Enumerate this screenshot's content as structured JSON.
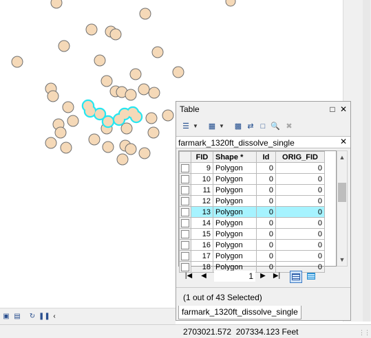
{
  "status_bar": {
    "coordinates": "2703021.572  207334.123 Feet"
  },
  "map_toolbar": {
    "icons": [
      "data-view-icon",
      "layout-view-icon",
      "refresh-icon",
      "pause-icon",
      "back-arrow-icon"
    ]
  },
  "table_window": {
    "title": "Table",
    "toolbar_icons": [
      "table-options-icon",
      "related-tables-icon",
      "select-by-attributes-icon",
      "switch-selection-icon",
      "clear-selection-icon",
      "zoom-to-selected-icon",
      "delete-selected-icon"
    ],
    "tab_name": "farmark_1320ft_dissolve_single",
    "columns": [
      "FID",
      "Shape *",
      "Id",
      "ORIG_FID"
    ],
    "rows": [
      {
        "fid": "9",
        "shape": "Polygon",
        "id": "0",
        "orig_fid": "0"
      },
      {
        "fid": "10",
        "shape": "Polygon",
        "id": "0",
        "orig_fid": "0"
      },
      {
        "fid": "11",
        "shape": "Polygon",
        "id": "0",
        "orig_fid": "0"
      },
      {
        "fid": "12",
        "shape": "Polygon",
        "id": "0",
        "orig_fid": "0"
      },
      {
        "fid": "13",
        "shape": "Polygon",
        "id": "0",
        "orig_fid": "0"
      },
      {
        "fid": "14",
        "shape": "Polygon",
        "id": "0",
        "orig_fid": "0"
      },
      {
        "fid": "15",
        "shape": "Polygon",
        "id": "0",
        "orig_fid": "0"
      },
      {
        "fid": "16",
        "shape": "Polygon",
        "id": "0",
        "orig_fid": "0"
      },
      {
        "fid": "17",
        "shape": "Polygon",
        "id": "0",
        "orig_fid": "0"
      },
      {
        "fid": "18",
        "shape": "Polygon",
        "id": "0",
        "orig_fid": "0"
      }
    ],
    "selected_fid": "13",
    "navigator": {
      "record": "1"
    },
    "selection_status": "(1 out of 43 Selected)",
    "bottom_tab": "farmark_1320ft_dissolve_single"
  },
  "colors": {
    "polygon_fill": "#f5d9b8",
    "polygon_outline": "#6f6f6f",
    "selection_outline": "#27e6f0",
    "selected_row": "#a6f3ff"
  }
}
